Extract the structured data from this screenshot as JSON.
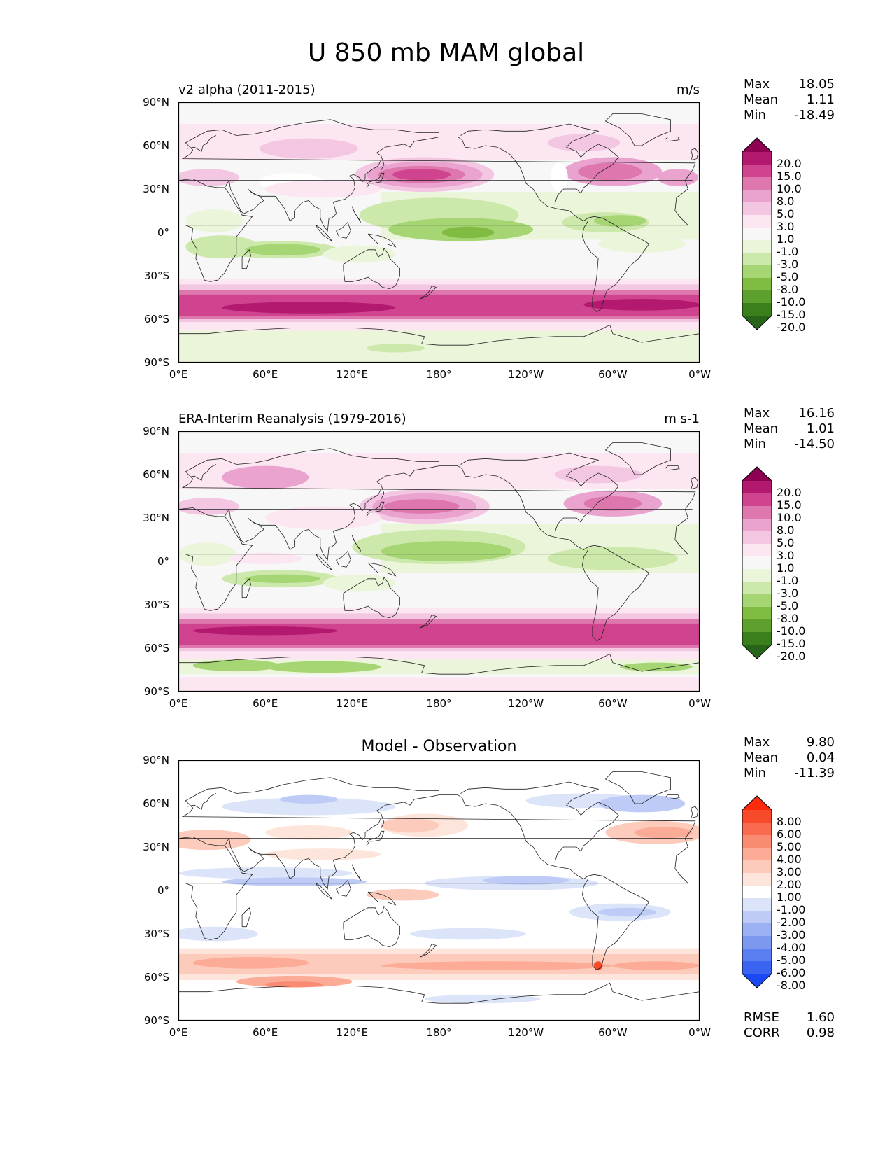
{
  "figure": {
    "title": "U 850 mb MAM global"
  },
  "axes": {
    "lat_labels": [
      "90°N",
      "60°N",
      "30°N",
      "0°",
      "30°S",
      "60°S",
      "90°S"
    ],
    "lon_labels": [
      "0°E",
      "60°E",
      "120°E",
      "180°",
      "120°W",
      "60°W",
      "0°W"
    ]
  },
  "panels": [
    {
      "left_title": "v2 alpha (2011-2015)",
      "center_title": "",
      "units": "m/s",
      "stats": {
        "max_label": "Max",
        "max": "18.05",
        "mean_label": "Mean",
        "mean": "1.11",
        "min_label": "Min",
        "min": "-18.49"
      },
      "colorbar": {
        "ticks": [
          "20.0",
          "15.0",
          "10.0",
          "8.0",
          "5.0",
          "3.0",
          "1.0",
          "-1.0",
          "-3.0",
          "-5.0",
          "-8.0",
          "-10.0",
          "-15.0",
          "-20.0"
        ],
        "colors": [
          "#8e0152",
          "#b3196e",
          "#d0438f",
          "#de77ae",
          "#eaa3cf",
          "#f3c6e2",
          "#fbe6f1",
          "#f7f7f7",
          "#ebf5da",
          "#cce8aa",
          "#a6d573",
          "#7fbc41",
          "#5ea02d",
          "#3b7f1d",
          "#276419"
        ]
      }
    },
    {
      "left_title": "ERA-Interim Reanalysis (1979-2016)",
      "center_title": "",
      "units": "m s-1",
      "stats": {
        "max_label": "Max",
        "max": "16.16",
        "mean_label": "Mean",
        "mean": "1.01",
        "min_label": "Min",
        "min": "-14.50"
      },
      "colorbar": {
        "ticks": [
          "20.0",
          "15.0",
          "10.0",
          "8.0",
          "5.0",
          "3.0",
          "1.0",
          "-1.0",
          "-3.0",
          "-5.0",
          "-8.0",
          "-10.0",
          "-15.0",
          "-20.0"
        ],
        "colors": [
          "#8e0152",
          "#b3196e",
          "#d0438f",
          "#de77ae",
          "#eaa3cf",
          "#f3c6e2",
          "#fbe6f1",
          "#f7f7f7",
          "#ebf5da",
          "#cce8aa",
          "#a6d573",
          "#7fbc41",
          "#5ea02d",
          "#3b7f1d",
          "#276419"
        ]
      }
    },
    {
      "left_title": "",
      "center_title": "Model - Observation",
      "units": "",
      "stats": {
        "max_label": "Max",
        "max": "9.80",
        "mean_label": "Mean",
        "mean": "0.04",
        "min_label": "Min",
        "min": "-11.39"
      },
      "extra_stats": {
        "rmse_label": "RMSE",
        "rmse": "1.60",
        "corr_label": "CORR",
        "corr": "0.98"
      },
      "colorbar": {
        "ticks": [
          "8.00",
          "6.00",
          "5.00",
          "4.00",
          "3.00",
          "2.00",
          "1.00",
          "-1.00",
          "-2.00",
          "-3.00",
          "-4.00",
          "-5.00",
          "-6.00",
          "-8.00"
        ],
        "colors": [
          "#ff2a0b",
          "#f74a2a",
          "#f96a4f",
          "#f98b72",
          "#fbab96",
          "#fdcbbb",
          "#fee5dc",
          "#ffffff",
          "#dce4fa",
          "#bdcbf6",
          "#9cb1f3",
          "#7c98ef",
          "#5b7ef0",
          "#3a63f0",
          "#1a48f4"
        ]
      }
    }
  ]
}
